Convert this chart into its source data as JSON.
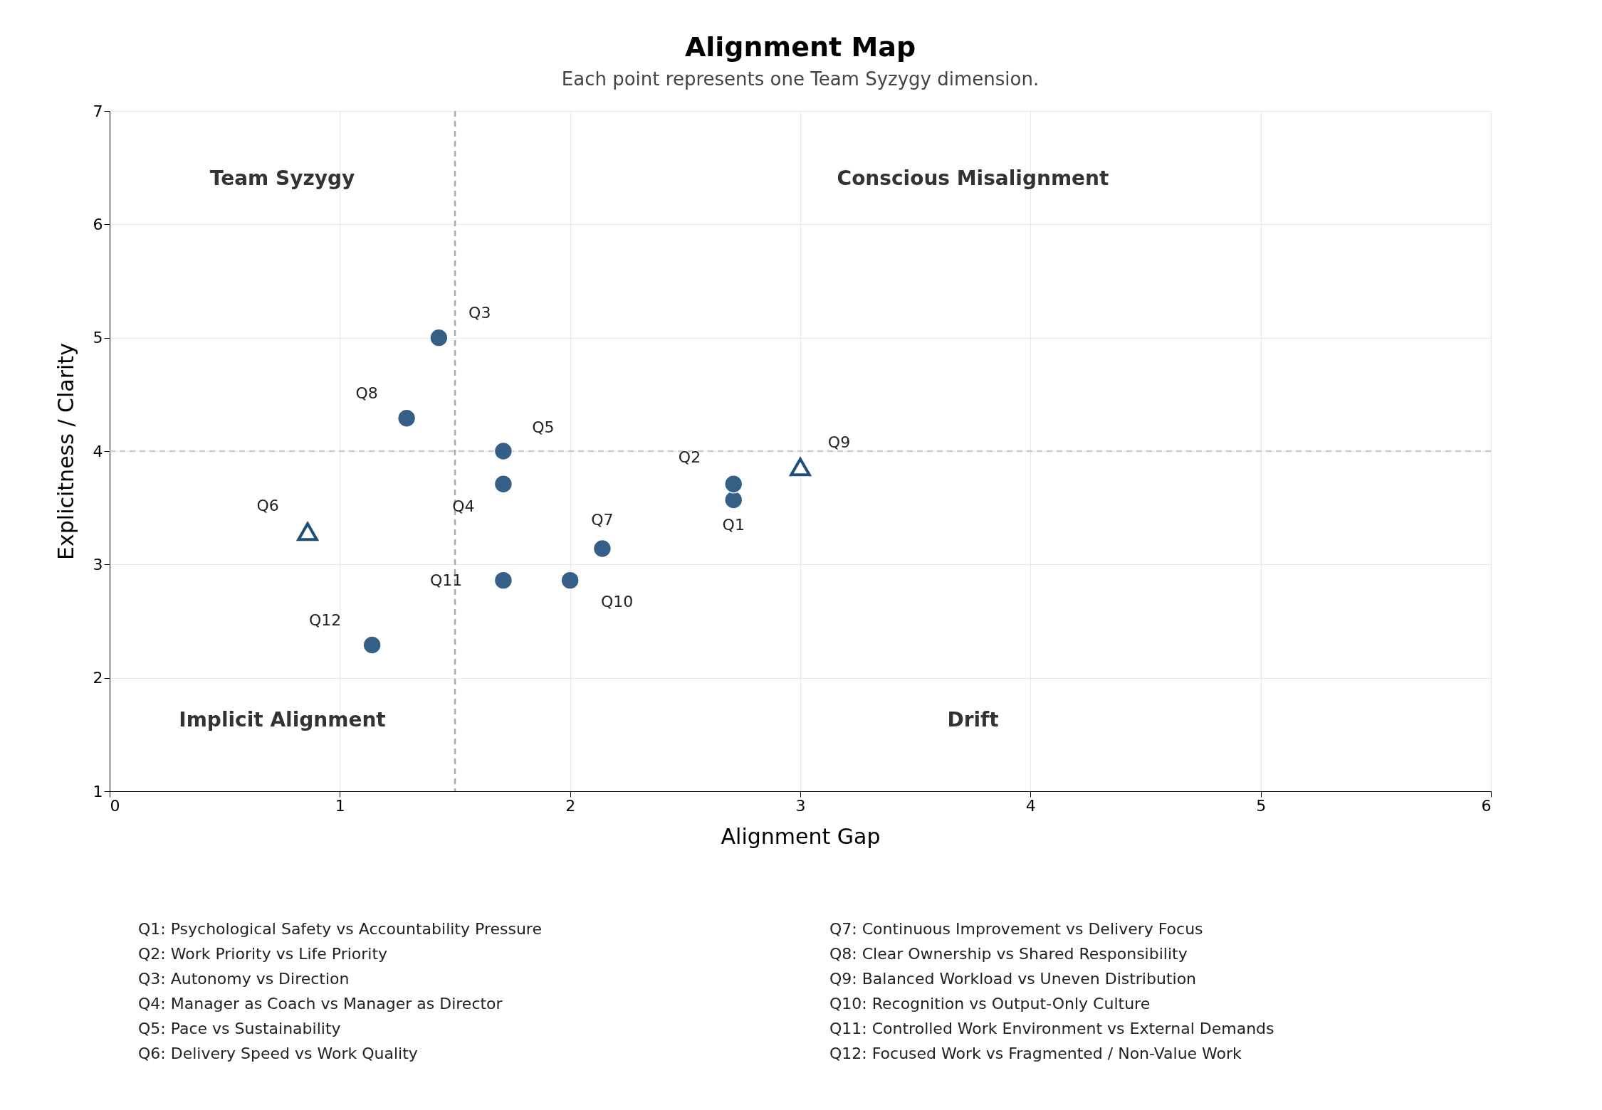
{
  "chart_data": {
    "type": "scatter",
    "title": "Alignment Map",
    "subtitle": "Each point represents one Team Syzygy dimension.",
    "xlabel": "Alignment Gap",
    "ylabel": "Explicitness / Clarity",
    "xlim": [
      0,
      6
    ],
    "xticks": [
      0,
      1,
      2,
      3,
      4,
      5,
      6
    ],
    "ylim": [
      1,
      7
    ],
    "yticks": [
      1,
      2,
      3,
      4,
      5,
      6,
      7
    ],
    "grid": true,
    "legend": false,
    "series": [
      {
        "color": "#1f4e79",
        "marker": "circle",
        "x": [
          2.71,
          2.71,
          1.71,
          1.71,
          2.14,
          1.29,
          2.0
        ],
        "values": [
          3.57,
          3.71,
          3.71,
          4.0,
          3.14,
          4.29,
          2.86
        ]
      },
      {
        "color": "#1f4e79",
        "marker": "circle",
        "x": [
          1.43,
          1.71,
          1.14
        ],
        "values": [
          5.0,
          2.86,
          2.29
        ]
      },
      {
        "color": "#1f4e79",
        "marker": "triangle",
        "x": [
          0.86,
          3.0
        ],
        "values": [
          3.29,
          3.86
        ]
      }
    ],
    "ref_lines": [
      {
        "axis": "x",
        "value": 1.5,
        "color": "#aaaaaa",
        "line_style": "dashed"
      },
      {
        "axis": "y",
        "value": 4,
        "color": "#cccccc",
        "line_style": "dashed"
      }
    ],
    "annotations": [
      {
        "text": "Q1",
        "x": 2.71,
        "y": 3.57
      },
      {
        "text": "Q2",
        "x": 2.71,
        "y": 3.71
      },
      {
        "text": "Q3",
        "x": 1.43,
        "y": 5.0
      },
      {
        "text": "Q4",
        "x": 1.71,
        "y": 3.71
      },
      {
        "text": "Q5",
        "x": 1.71,
        "y": 4.0
      },
      {
        "text": "Q6",
        "x": 0.86,
        "y": 3.29
      },
      {
        "text": "Q7",
        "x": 2.14,
        "y": 3.14
      },
      {
        "text": "Q8",
        "x": 1.29,
        "y": 4.29
      },
      {
        "text": "Q9",
        "x": 3.0,
        "y": 3.86
      },
      {
        "text": "Q10",
        "x": 2.0,
        "y": 2.86
      },
      {
        "text": "Q11",
        "x": 1.71,
        "y": 2.86
      },
      {
        "text": "Q12",
        "x": 1.14,
        "y": 2.29
      },
      "Team Syzygy",
      "Conscious Misalignment",
      "Implicit Alignment",
      "Drift",
      "Q1: Psychological Safety vs Accountability Pressure",
      "Q2: Work Priority vs Life Priority",
      "Q3: Autonomy vs Direction",
      "Q4: Manager as Coach vs Manager as Director",
      "Q5: Pace vs Sustainability",
      "Q6: Delivery Speed vs Work Quality",
      "Q7: Continuous Improvement vs Delivery Focus",
      "Q8: Clear Ownership vs Shared Responsibility",
      "Q9: Balanced Workload vs Uneven Distribution",
      "Q10: Recognition vs Output-Only Culture",
      "Q11: Controlled Work Environment vs External Demands",
      "Q12: Focused Work vs Fragmented / Non-Value Work"
    ]
  }
}
